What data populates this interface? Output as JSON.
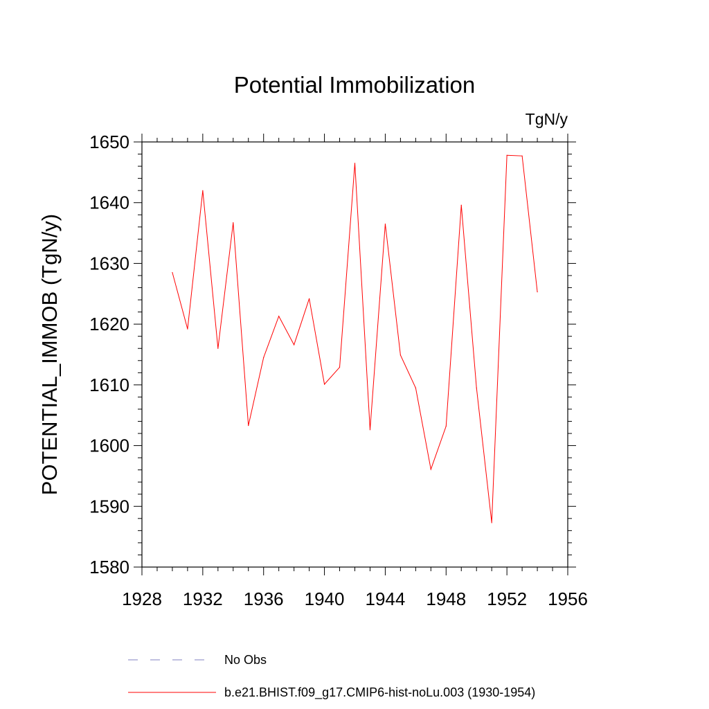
{
  "chart_data": {
    "type": "line",
    "title": "Potential Immobilization",
    "units_label": "TgN/y",
    "xlabel": "",
    "ylabel": "POTENTIAL_IMMOB  (TgN/y)",
    "xlim": [
      1928,
      1956
    ],
    "ylim": [
      1580,
      1650
    ],
    "x_major_ticks": [
      1928,
      1932,
      1936,
      1940,
      1944,
      1948,
      1952,
      1956
    ],
    "x_minor_step": 1,
    "y_major_ticks": [
      1580,
      1590,
      1600,
      1610,
      1620,
      1630,
      1640,
      1650
    ],
    "y_minor_step": 2,
    "grid": false,
    "series": [
      {
        "name": "b.e21.BHIST.f09_g17.CMIP6-hist-noLu.003 (1930-1954)",
        "color": "#ff0000",
        "style": "solid",
        "x": [
          1930,
          1931,
          1932,
          1933,
          1934,
          1935,
          1936,
          1937,
          1938,
          1939,
          1940,
          1941,
          1942,
          1943,
          1944,
          1945,
          1946,
          1947,
          1948,
          1949,
          1950,
          1951,
          1952,
          1953,
          1954
        ],
        "values": [
          1628.5,
          1619.2,
          1642.0,
          1616.0,
          1636.7,
          1603.3,
          1614.5,
          1621.3,
          1616.6,
          1624.2,
          1610.1,
          1612.9,
          1646.5,
          1602.6,
          1636.5,
          1614.9,
          1609.5,
          1596.1,
          1603.2,
          1639.6,
          1609.5,
          1587.3,
          1647.8,
          1647.7,
          1625.3
        ]
      }
    ],
    "legend": [
      {
        "label": "No Obs",
        "color": "#8080c0",
        "style": "dashed"
      },
      {
        "label": "b.e21.BHIST.f09_g17.CMIP6-hist-noLu.003 (1930-1954)",
        "color": "#ff0000",
        "style": "solid"
      }
    ]
  }
}
